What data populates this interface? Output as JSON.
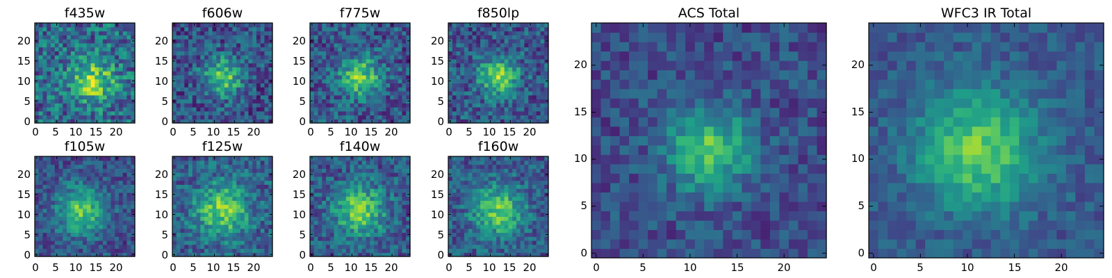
{
  "chart_data": [
    {
      "type": "heatmap",
      "title": "f435w",
      "xticks": [
        "0",
        "5",
        "10",
        "15",
        "20"
      ],
      "yticks": [
        "0",
        "5",
        "10",
        "15",
        "20"
      ],
      "grid_size": 25,
      "colormap": "viridis",
      "peak": [
        14,
        10
      ],
      "spread": 3.8,
      "noise": 0.5,
      "level": 0.62
    },
    {
      "type": "heatmap",
      "title": "f606w",
      "xticks": [
        "0",
        "5",
        "10",
        "15",
        "20"
      ],
      "yticks": [
        "0",
        "5",
        "10",
        "15",
        "20"
      ],
      "grid_size": 25,
      "colormap": "viridis",
      "peak": [
        12,
        11
      ],
      "spread": 3.5,
      "noise": 0.42,
      "level": 0.45
    },
    {
      "type": "heatmap",
      "title": "f775w",
      "xticks": [
        "0",
        "5",
        "10",
        "15",
        "20"
      ],
      "yticks": [
        "0",
        "5",
        "10",
        "15",
        "20"
      ],
      "grid_size": 25,
      "colormap": "viridis",
      "peak": [
        12,
        11
      ],
      "spread": 3.5,
      "noise": 0.42,
      "level": 0.5
    },
    {
      "type": "heatmap",
      "title": "f850lp",
      "xticks": [
        "0",
        "5",
        "10",
        "15",
        "20"
      ],
      "yticks": [
        "0",
        "5",
        "10",
        "15",
        "20"
      ],
      "grid_size": 25,
      "colormap": "viridis",
      "peak": [
        12,
        11
      ],
      "spread": 3.5,
      "noise": 0.42,
      "level": 0.5
    },
    {
      "type": "heatmap",
      "title": "f105w",
      "xticks": [
        "0",
        "5",
        "10",
        "15",
        "20"
      ],
      "yticks": [
        "0",
        "5",
        "10",
        "15",
        "20"
      ],
      "grid_size": 25,
      "colormap": "viridis",
      "peak": [
        11,
        11
      ],
      "spread": 4.2,
      "noise": 0.33,
      "level": 0.45
    },
    {
      "type": "heatmap",
      "title": "f125w",
      "xticks": [
        "0",
        "5",
        "10",
        "15",
        "20"
      ],
      "yticks": [
        "0",
        "5",
        "10",
        "15",
        "20"
      ],
      "grid_size": 25,
      "colormap": "viridis",
      "peak": [
        12,
        11
      ],
      "spread": 4.5,
      "noise": 0.38,
      "level": 0.55
    },
    {
      "type": "heatmap",
      "title": "f140w",
      "xticks": [
        "0",
        "5",
        "10",
        "15",
        "20"
      ],
      "yticks": [
        "0",
        "5",
        "10",
        "15",
        "20"
      ],
      "grid_size": 25,
      "colormap": "viridis",
      "peak": [
        12,
        11
      ],
      "spread": 4.5,
      "noise": 0.38,
      "level": 0.5
    },
    {
      "type": "heatmap",
      "title": "f160w",
      "xticks": [
        "0",
        "5",
        "10",
        "15",
        "20"
      ],
      "yticks": [
        "0",
        "5",
        "10",
        "15",
        "20"
      ],
      "grid_size": 25,
      "colormap": "viridis",
      "peak": [
        12,
        11
      ],
      "spread": 4.5,
      "noise": 0.35,
      "level": 0.5
    },
    {
      "type": "heatmap",
      "title": "ACS Total",
      "xticks": [
        "0",
        "5",
        "10",
        "15",
        "20"
      ],
      "yticks": [
        "0",
        "5",
        "10",
        "15",
        "20"
      ],
      "grid_size": 25,
      "colormap": "viridis",
      "peak": [
        12,
        11
      ],
      "spread": 3.2,
      "noise": 0.28,
      "level": 0.42
    },
    {
      "type": "heatmap",
      "title": "WFC3 IR Total",
      "xticks": [
        "0",
        "5",
        "10",
        "15",
        "20"
      ],
      "yticks": [
        "0",
        "5",
        "10",
        "15",
        "20"
      ],
      "grid_size": 25,
      "colormap": "viridis",
      "peak": [
        11,
        11
      ],
      "spread": 4.4,
      "noise": 0.22,
      "level": 0.5
    }
  ]
}
